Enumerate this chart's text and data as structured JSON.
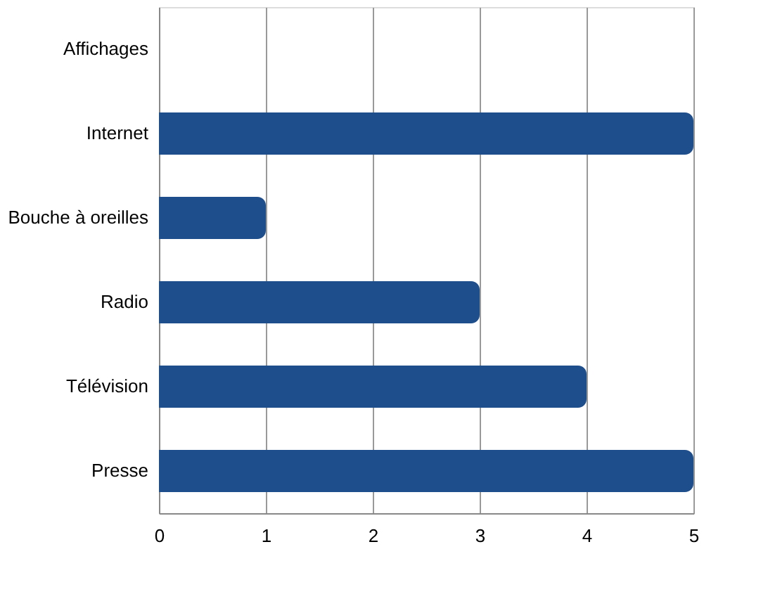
{
  "chart_data": {
    "type": "bar",
    "orientation": "horizontal",
    "categories": [
      "Affichages",
      "Internet",
      "Bouche à oreilles",
      "Radio",
      "Télévision",
      "Presse"
    ],
    "values": [
      0,
      5,
      1,
      3,
      4,
      5
    ],
    "color": "#1f4e8c",
    "xlim": [
      0,
      5
    ],
    "xticks": [
      0,
      1,
      2,
      3,
      4,
      5
    ],
    "grid": "x"
  }
}
